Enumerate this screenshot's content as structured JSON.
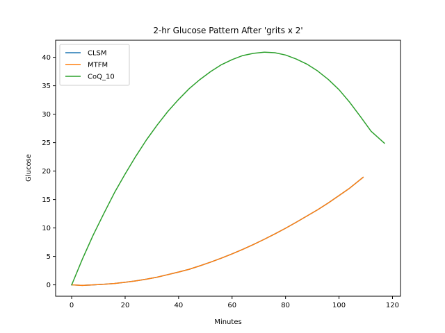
{
  "chart_data": {
    "type": "line",
    "title": "2-hr Glucose Pattern After 'grits x 2'",
    "xlabel": "Minutes",
    "ylabel": "Glucose",
    "xlim": [
      -6,
      123
    ],
    "ylim": [
      -2,
      43
    ],
    "xticks": [
      0,
      20,
      40,
      60,
      80,
      100,
      120
    ],
    "yticks": [
      0,
      5,
      10,
      15,
      20,
      25,
      30,
      35,
      40
    ],
    "grid": false,
    "legend_position": "top-left",
    "series": [
      {
        "name": "CLSM",
        "color": "#1f77b4",
        "x": [
          0,
          4,
          8,
          12,
          16,
          20,
          24,
          28,
          32,
          36,
          40,
          44,
          48,
          52,
          56,
          60,
          64,
          68,
          72,
          76,
          80,
          84,
          88,
          92,
          96,
          100,
          104,
          109
        ],
        "y": [
          0,
          -0.1,
          0,
          0.1,
          0.25,
          0.45,
          0.7,
          1.0,
          1.35,
          1.8,
          2.25,
          2.75,
          3.35,
          4.0,
          4.7,
          5.45,
          6.25,
          7.1,
          8.0,
          8.95,
          9.95,
          11.0,
          12.1,
          13.2,
          14.4,
          15.7,
          17.0,
          18.9
        ]
      },
      {
        "name": "MTFM",
        "color": "#ff7f0e",
        "x": [
          0,
          4,
          8,
          12,
          16,
          20,
          24,
          28,
          32,
          36,
          40,
          44,
          48,
          52,
          56,
          60,
          64,
          68,
          72,
          76,
          80,
          84,
          88,
          92,
          96,
          100,
          104,
          109
        ],
        "y": [
          0,
          -0.1,
          0,
          0.1,
          0.25,
          0.45,
          0.7,
          1.0,
          1.35,
          1.8,
          2.25,
          2.75,
          3.35,
          4.0,
          4.7,
          5.45,
          6.25,
          7.1,
          8.0,
          8.95,
          9.95,
          11.0,
          12.1,
          13.2,
          14.4,
          15.7,
          17.0,
          18.9
        ]
      },
      {
        "name": "CoQ_10",
        "color": "#2ca02c",
        "x": [
          0,
          4,
          8,
          12,
          16,
          20,
          24,
          28,
          32,
          36,
          40,
          44,
          48,
          52,
          56,
          60,
          64,
          68,
          72,
          76,
          80,
          84,
          88,
          92,
          96,
          100,
          104,
          108,
          112,
          117
        ],
        "y": [
          0,
          4.5,
          8.7,
          12.5,
          16.2,
          19.5,
          22.6,
          25.5,
          28.1,
          30.5,
          32.6,
          34.5,
          36.1,
          37.5,
          38.7,
          39.6,
          40.3,
          40.7,
          40.9,
          40.8,
          40.4,
          39.7,
          38.8,
          37.6,
          36.1,
          34.3,
          32.1,
          29.6,
          27.0,
          24.9
        ]
      }
    ]
  }
}
